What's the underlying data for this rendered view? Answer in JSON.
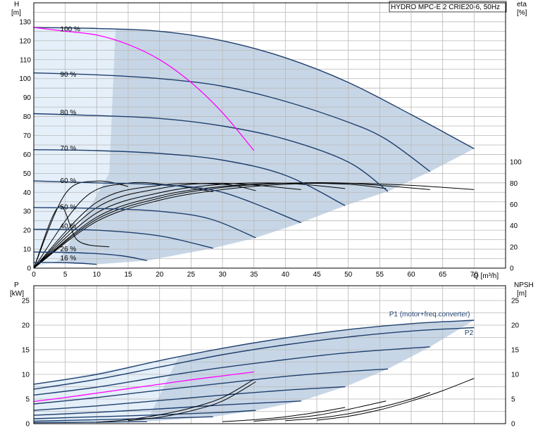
{
  "chart_data": [
    {
      "type": "line",
      "title": "HYDRO MPC-E 2 CRIE20-6, 50Hz",
      "y_label_left": "H",
      "y_unit_left": "[m]",
      "y_label_right": "eta",
      "y_unit_right": "[%]",
      "x_label": "Q [m³/h]",
      "xlim": [
        0,
        75
      ],
      "ylim_left": [
        0,
        140
      ],
      "ylim_right": [
        0,
        100
      ],
      "x_ticks": [
        "0",
        "5",
        "10",
        "15",
        "20",
        "25",
        "30",
        "35",
        "40",
        "45",
        "50",
        "55",
        "60",
        "65",
        "70"
      ],
      "y_ticks_left": [
        "0",
        "10",
        "20",
        "30",
        "40",
        "50",
        "60",
        "70",
        "80",
        "90",
        "100",
        "110",
        "120",
        "130"
      ],
      "y_ticks_right": [
        "0",
        "20",
        "40",
        "60",
        "80",
        "100"
      ],
      "speed_labels": [
        {
          "text": "100 %",
          "q": 4.2,
          "h": 125
        },
        {
          "text": "90 %",
          "q": 4.2,
          "h": 101
        },
        {
          "text": "80 %",
          "q": 4.2,
          "h": 81
        },
        {
          "text": "70 %",
          "q": 4.2,
          "h": 62
        },
        {
          "text": "60 %",
          "q": 4.2,
          "h": 45
        },
        {
          "text": "50 %",
          "q": 4.2,
          "h": 31
        },
        {
          "text": "40 %",
          "q": 4.2,
          "h": 21
        },
        {
          "text": "26 %",
          "q": 4.2,
          "h": 9
        },
        {
          "text": "16 %",
          "q": 4.2,
          "h": 4
        }
      ],
      "head_series": [
        {
          "speed": 100,
          "points": [
            [
              0,
              127
            ],
            [
              10,
              126.5
            ],
            [
              20,
              125
            ],
            [
              30,
              120
            ],
            [
              40,
              111
            ],
            [
              50,
              98
            ],
            [
              60,
              81
            ],
            [
              70,
              63
            ]
          ]
        },
        {
          "speed": 90,
          "points": [
            [
              0,
              103
            ],
            [
              10,
              102
            ],
            [
              20,
              100
            ],
            [
              30,
              96
            ],
            [
              40,
              88
            ],
            [
              50,
              77
            ],
            [
              56,
              68
            ],
            [
              63,
              51
            ]
          ]
        },
        {
          "speed": 80,
          "points": [
            [
              0,
              81.5
            ],
            [
              10,
              80.5
            ],
            [
              20,
              79
            ],
            [
              30,
              75
            ],
            [
              40,
              68
            ],
            [
              50,
              56
            ],
            [
              56.3,
              40.5
            ]
          ]
        },
        {
          "speed": 70,
          "points": [
            [
              0,
              62.5
            ],
            [
              10,
              62
            ],
            [
              20,
              60.5
            ],
            [
              30,
              57
            ],
            [
              40,
              49
            ],
            [
              49.5,
              33
            ]
          ]
        },
        {
          "speed": 60,
          "points": [
            [
              0,
              46
            ],
            [
              10,
              45
            ],
            [
              20,
              44
            ],
            [
              30,
              40
            ],
            [
              42.5,
              24
            ]
          ]
        },
        {
          "speed": 50,
          "points": [
            [
              0,
              32
            ],
            [
              10,
              31.5
            ],
            [
              20,
              30
            ],
            [
              28,
              26
            ],
            [
              35.3,
              16
            ]
          ]
        },
        {
          "speed": 40,
          "points": [
            [
              0,
              20.5
            ],
            [
              10,
              20
            ],
            [
              20,
              17
            ],
            [
              28.5,
              10.5
            ]
          ]
        },
        {
          "speed": 26,
          "points": [
            [
              0,
              8.5
            ],
            [
              8,
              8
            ],
            [
              14,
              6.5
            ],
            [
              18,
              4
            ]
          ]
        },
        {
          "speed": 16,
          "points": [
            [
              0,
              3
            ],
            [
              6,
              2.8
            ],
            [
              10,
              2
            ]
          ]
        }
      ],
      "efficiency_series": [
        {
          "speed": 100,
          "points": [
            [
              0,
              0
            ],
            [
              10,
              44
            ],
            [
              20,
              64
            ],
            [
              30,
              74
            ],
            [
              40,
              79
            ],
            [
              50,
              80
            ],
            [
              60,
              78
            ],
            [
              70,
              74
            ]
          ]
        },
        {
          "speed": 90,
          "points": [
            [
              0,
              0
            ],
            [
              10,
              46
            ],
            [
              20,
              66
            ],
            [
              30,
              76
            ],
            [
              40,
              80
            ],
            [
              50,
              80
            ],
            [
              63,
              74
            ]
          ]
        },
        {
          "speed": 80,
          "points": [
            [
              0,
              0
            ],
            [
              10,
              48
            ],
            [
              20,
              68
            ],
            [
              30,
              77
            ],
            [
              40,
              80
            ],
            [
              50,
              79
            ],
            [
              56,
              75
            ]
          ]
        },
        {
          "speed": 70,
          "points": [
            [
              0,
              0
            ],
            [
              10,
              52
            ],
            [
              20,
              71
            ],
            [
              30,
              79
            ],
            [
              40,
              80
            ],
            [
              49.5,
              75
            ]
          ]
        },
        {
          "speed": 60,
          "points": [
            [
              0,
              0
            ],
            [
              10,
              57
            ],
            [
              20,
              75
            ],
            [
              30,
              80
            ],
            [
              42.5,
              74
            ]
          ]
        },
        {
          "speed": 50,
          "points": [
            [
              0,
              0
            ],
            [
              10,
              62
            ],
            [
              20,
              78
            ],
            [
              30,
              79
            ],
            [
              35.3,
              73
            ]
          ]
        },
        {
          "speed": 40,
          "points": [
            [
              0,
              0
            ],
            [
              8,
              66
            ],
            [
              15,
              80
            ],
            [
              22,
              78
            ],
            [
              28.5,
              72
            ]
          ]
        },
        {
          "speed": 26,
          "points": [
            [
              0,
              0
            ],
            [
              5,
              70
            ],
            [
              10,
              82
            ],
            [
              15,
              77
            ]
          ]
        },
        {
          "speed": 16,
          "points": [
            [
              0,
              0
            ],
            [
              4,
              58
            ],
            [
              7,
              26
            ],
            [
              12,
              20
            ]
          ]
        }
      ],
      "operating_curve": {
        "name": "",
        "points": [
          [
            0,
            127
          ],
          [
            5,
            125
          ],
          [
            10,
            123
          ],
          [
            15,
            118
          ],
          [
            20,
            110
          ],
          [
            25,
            98
          ],
          [
            30,
            82
          ],
          [
            35,
            62
          ]
        ]
      }
    },
    {
      "type": "line",
      "y_label_left": "P",
      "y_unit_left": "[kW]",
      "y_label_right": "NPSH",
      "y_unit_right": "[m]",
      "xlim": [
        0,
        75
      ],
      "ylim_left": [
        0,
        28
      ],
      "ylim_right": [
        0,
        28
      ],
      "y_ticks_left": [
        "0",
        "5",
        "10",
        "15",
        "20",
        "25"
      ],
      "y_ticks_right": [
        "0",
        "5",
        "10",
        "15",
        "20",
        "25"
      ],
      "series_labels": [
        {
          "text": "P1 (motor+freq.converter)",
          "q": 56.5,
          "p": 21.8
        },
        {
          "text": "P2",
          "q": 68.5,
          "p": 18
        }
      ],
      "power_series": [
        {
          "name": "P1",
          "speed": 100,
          "points": [
            [
              0,
              8
            ],
            [
              10,
              10
            ],
            [
              20,
              12.8
            ],
            [
              30,
              15.3
            ],
            [
              40,
              17.4
            ],
            [
              50,
              19.1
            ],
            [
              60,
              20.3
            ],
            [
              70,
              21
            ]
          ]
        },
        {
          "name": "P2",
          "speed": 100,
          "points": [
            [
              0,
              7
            ],
            [
              10,
              9
            ],
            [
              20,
              11.5
            ],
            [
              30,
              14
            ],
            [
              40,
              16
            ],
            [
              50,
              17.6
            ],
            [
              60,
              18.8
            ],
            [
              70,
              19.5
            ]
          ]
        },
        {
          "name": "P1",
          "speed": 90,
          "points": [
            [
              0,
              5.8
            ],
            [
              10,
              7.4
            ],
            [
              20,
              9.5
            ],
            [
              30,
              11.4
            ],
            [
              40,
              13
            ],
            [
              50,
              14.4
            ],
            [
              63,
              15.6
            ]
          ]
        },
        {
          "name": "P1",
          "speed": 80,
          "points": [
            [
              0,
              4
            ],
            [
              10,
              5.3
            ],
            [
              20,
              6.8
            ],
            [
              30,
              8.2
            ],
            [
              40,
              9.6
            ],
            [
              50,
              10.6
            ],
            [
              56.3,
              11.1
            ]
          ]
        },
        {
          "name": "P1",
          "speed": 70,
          "points": [
            [
              0,
              2.7
            ],
            [
              10,
              3.6
            ],
            [
              20,
              4.7
            ],
            [
              30,
              5.8
            ],
            [
              40,
              6.8
            ],
            [
              49.5,
              7.5
            ]
          ]
        },
        {
          "name": "P1",
          "speed": 60,
          "points": [
            [
              0,
              1.7
            ],
            [
              10,
              2.3
            ],
            [
              20,
              3
            ],
            [
              30,
              3.8
            ],
            [
              42.5,
              4.6
            ]
          ]
        },
        {
          "name": "P1",
          "speed": 50,
          "points": [
            [
              0,
              1
            ],
            [
              10,
              1.4
            ],
            [
              20,
              1.8
            ],
            [
              30,
              2.3
            ],
            [
              35.3,
              2.7
            ]
          ]
        },
        {
          "name": "P1",
          "speed": 40,
          "points": [
            [
              0,
              0.5
            ],
            [
              10,
              0.8
            ],
            [
              20,
              1.1
            ],
            [
              28.5,
              1.4
            ]
          ]
        },
        {
          "name": "P1",
          "speed": 26,
          "points": [
            [
              0,
              0.2
            ],
            [
              10,
              0.3
            ],
            [
              18,
              0.45
            ]
          ]
        }
      ],
      "operating_power_curve": {
        "name": "",
        "points": [
          [
            0,
            4.5
          ],
          [
            5,
            5.3
          ],
          [
            10,
            6.2
          ],
          [
            15,
            7.1
          ],
          [
            20,
            8
          ],
          [
            25,
            8.9
          ],
          [
            30,
            9.7
          ],
          [
            35,
            10.5
          ]
        ]
      },
      "npsh_series": [
        {
          "speed": 100,
          "points": [
            [
              45,
              0.7
            ],
            [
              50,
              1.5
            ],
            [
              55,
              2.8
            ],
            [
              60,
              4.6
            ],
            [
              65,
              6.7
            ],
            [
              70,
              9.2
            ]
          ]
        },
        {
          "speed": 90,
          "points": [
            [
              40,
              0.6
            ],
            [
              45,
              1.1
            ],
            [
              50,
              2
            ],
            [
              55,
              3.3
            ],
            [
              60,
              5
            ],
            [
              63,
              6.3
            ]
          ]
        },
        {
          "speed": 80,
          "points": [
            [
              35,
              0.5
            ],
            [
              40,
              1
            ],
            [
              45,
              1.7
            ],
            [
              50,
              2.9
            ],
            [
              56,
              4.6
            ]
          ]
        },
        {
          "speed": 70,
          "points": [
            [
              30,
              0.4
            ],
            [
              35,
              0.8
            ],
            [
              40,
              1.4
            ],
            [
              45,
              2.3
            ],
            [
              49.5,
              3.3
            ]
          ]
        },
        {
          "speed": 50,
          "points": [
            [
              15,
              0.6
            ],
            [
              20,
              1.3
            ],
            [
              25,
              2.6
            ],
            [
              30,
              4.6
            ],
            [
              35.3,
              8.5
            ]
          ]
        }
      ],
      "npsh_operating": {
        "points": [
          [
            10,
            0.3
          ],
          [
            15,
            0.8
          ],
          [
            20,
            1.8
          ],
          [
            25,
            3.2
          ],
          [
            30,
            5.3
          ],
          [
            35,
            9
          ]
        ]
      }
    }
  ],
  "colors": {
    "region_dark": "#c7d6e6",
    "region_light": "#e4eff9",
    "curve": "#1f3f6e",
    "operating": "#ff00ff",
    "grid": "#b8b8b8"
  }
}
